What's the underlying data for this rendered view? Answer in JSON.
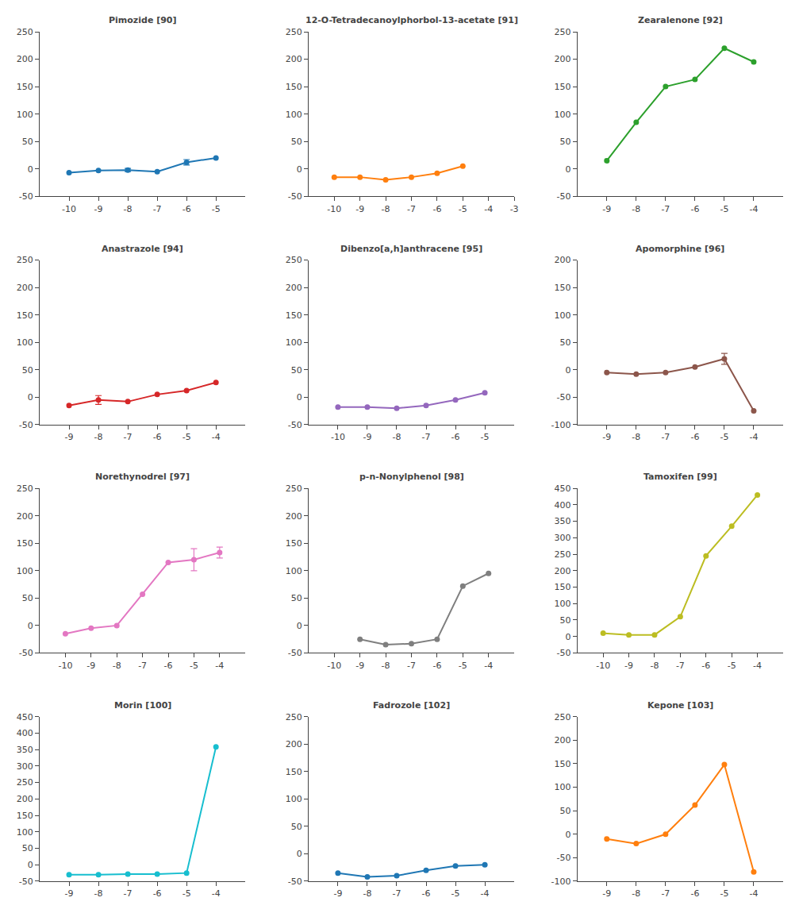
{
  "chart_data": [
    {
      "type": "line",
      "title": "Pimozide [90]",
      "x": [
        -10,
        -9,
        -8,
        -7,
        -6,
        -5
      ],
      "values": [
        -7,
        -3,
        -2,
        -5,
        12,
        20
      ],
      "yerr": [
        null,
        null,
        3,
        null,
        5,
        null
      ],
      "xlim": [
        -11,
        -4
      ],
      "ylim": [
        -50,
        250
      ],
      "xticks": [
        -10,
        -9,
        -8,
        -7,
        -6,
        -5
      ],
      "yticks": [
        -50,
        0,
        50,
        100,
        150,
        200,
        250
      ],
      "grid": false,
      "marker": "circle"
    },
    {
      "type": "line",
      "title": "12-O-Tetradecanoylphorbol-13-acetate [91]",
      "x": [
        -10,
        -9,
        -8,
        -7,
        -6,
        -5
      ],
      "values": [
        -15,
        -15,
        -20,
        -15,
        -8,
        5
      ],
      "xlim": [
        -11,
        -3
      ],
      "ylim": [
        -50,
        250
      ],
      "xticks": [
        -10,
        -9,
        -8,
        -7,
        -6,
        -5,
        -4,
        -3
      ],
      "yticks": [
        -50,
        0,
        50,
        100,
        150,
        200,
        250
      ],
      "grid": false,
      "marker": "circle"
    },
    {
      "type": "line",
      "title": "Zearalenone [92]",
      "x": [
        -9,
        -8,
        -7,
        -6,
        -5,
        -4
      ],
      "values": [
        15,
        85,
        150,
        163,
        220,
        195
      ],
      "xlim": [
        -10,
        -3
      ],
      "ylim": [
        -50,
        250
      ],
      "xticks": [
        -9,
        -8,
        -7,
        -6,
        -5,
        -4
      ],
      "yticks": [
        -50,
        0,
        50,
        100,
        150,
        200,
        250
      ],
      "grid": false,
      "marker": "circle"
    },
    {
      "type": "line",
      "title": "Anastrazole [94]",
      "x": [
        -9,
        -8,
        -7,
        -6,
        -5,
        -4
      ],
      "values": [
        -15,
        -5,
        -8,
        5,
        12,
        27
      ],
      "yerr": [
        null,
        8,
        null,
        null,
        null,
        null
      ],
      "xlim": [
        -10,
        -3
      ],
      "ylim": [
        -50,
        250
      ],
      "xticks": [
        -9,
        -8,
        -7,
        -6,
        -5,
        -4
      ],
      "yticks": [
        -50,
        0,
        50,
        100,
        150,
        200,
        250
      ],
      "grid": false,
      "marker": "circle"
    },
    {
      "type": "line",
      "title": "Dibenzo[a,h]anthracene [95]",
      "x": [
        -10,
        -9,
        -8,
        -7,
        -6,
        -5
      ],
      "values": [
        -18,
        -18,
        -20,
        -15,
        -5,
        8
      ],
      "xlim": [
        -11,
        -4
      ],
      "ylim": [
        -50,
        250
      ],
      "xticks": [
        -10,
        -9,
        -8,
        -7,
        -6,
        -5
      ],
      "yticks": [
        -50,
        0,
        50,
        100,
        150,
        200,
        250
      ],
      "grid": false,
      "marker": "circle"
    },
    {
      "type": "line",
      "title": "Apomorphine [96]",
      "x": [
        -9,
        -8,
        -7,
        -6,
        -5,
        -4
      ],
      "values": [
        -5,
        -8,
        -5,
        5,
        20,
        -75
      ],
      "yerr": [
        null,
        null,
        null,
        null,
        10,
        null
      ],
      "xlim": [
        -10,
        -3
      ],
      "ylim": [
        -100,
        200
      ],
      "xticks": [
        -9,
        -8,
        -7,
        -6,
        -5,
        -4
      ],
      "yticks": [
        -100,
        -50,
        0,
        50,
        100,
        150,
        200
      ],
      "grid": false,
      "marker": "circle"
    },
    {
      "type": "line",
      "title": "Norethynodrel [97]",
      "x": [
        -10,
        -9,
        -8,
        -7,
        -6,
        -5,
        -4
      ],
      "values": [
        -15,
        -5,
        0,
        57,
        115,
        120,
        133
      ],
      "yerr": [
        null,
        null,
        null,
        null,
        null,
        20,
        10
      ],
      "xlim": [
        -11,
        -3
      ],
      "ylim": [
        -50,
        250
      ],
      "xticks": [
        -10,
        -9,
        -8,
        -7,
        -6,
        -5,
        -4
      ],
      "yticks": [
        -50,
        0,
        50,
        100,
        150,
        200,
        250
      ],
      "grid": false,
      "marker": "circle"
    },
    {
      "type": "line",
      "title": "p-n-Nonylphenol [98]",
      "x": [
        -9,
        -8,
        -7,
        -6,
        -5,
        -4
      ],
      "values": [
        -25,
        -35,
        -33,
        -25,
        72,
        95
      ],
      "xlim": [
        -11,
        -3
      ],
      "ylim": [
        -50,
        250
      ],
      "xticks": [
        -10,
        -9,
        -8,
        -7,
        -6,
        -5,
        -4
      ],
      "yticks": [
        -50,
        0,
        50,
        100,
        150,
        200,
        250
      ],
      "grid": false,
      "marker": "circle"
    },
    {
      "type": "line",
      "title": "Tamoxifen [99]",
      "x": [
        -10,
        -9,
        -8,
        -7,
        -6,
        -5,
        -4
      ],
      "values": [
        10,
        5,
        5,
        60,
        245,
        335,
        430
      ],
      "xlim": [
        -11,
        -3
      ],
      "ylim": [
        -50,
        450
      ],
      "xticks": [
        -10,
        -9,
        -8,
        -7,
        -6,
        -5,
        -4
      ],
      "yticks": [
        -50,
        0,
        50,
        100,
        150,
        200,
        250,
        300,
        350,
        400,
        450
      ],
      "grid": false,
      "marker": "circle"
    },
    {
      "type": "line",
      "title": "Morin [100]",
      "x": [
        -9,
        -8,
        -7,
        -6,
        -5,
        -4
      ],
      "values": [
        -30,
        -30,
        -28,
        -28,
        -25,
        358
      ],
      "xlim": [
        -10,
        -3
      ],
      "ylim": [
        -50,
        450
      ],
      "xticks": [
        -9,
        -8,
        -7,
        -6,
        -5,
        -4
      ],
      "yticks": [
        -50,
        0,
        50,
        100,
        150,
        200,
        250,
        300,
        350,
        400,
        450
      ],
      "grid": false,
      "marker": "circle"
    },
    {
      "type": "line",
      "title": "Fadrozole [102]",
      "x": [
        -9,
        -8,
        -7,
        -6,
        -5,
        -4
      ],
      "values": [
        -35,
        -42,
        -40,
        -30,
        -22,
        -20
      ],
      "xlim": [
        -10,
        -3
      ],
      "ylim": [
        -50,
        250
      ],
      "xticks": [
        -9,
        -8,
        -7,
        -6,
        -5,
        -4
      ],
      "yticks": [
        -50,
        0,
        50,
        100,
        150,
        200,
        250
      ],
      "grid": false,
      "marker": "circle"
    },
    {
      "type": "line",
      "title": "Kepone [103]",
      "x": [
        -9,
        -8,
        -7,
        -6,
        -5,
        -4
      ],
      "values": [
        -10,
        -20,
        0,
        62,
        148,
        -80
      ],
      "xlim": [
        -10,
        -3
      ],
      "ylim": [
        -100,
        250
      ],
      "xticks": [
        -9,
        -8,
        -7,
        -6,
        -5,
        -4
      ],
      "yticks": [
        -100,
        -50,
        0,
        50,
        100,
        150,
        200,
        250
      ],
      "grid": false,
      "marker": "circle"
    }
  ]
}
